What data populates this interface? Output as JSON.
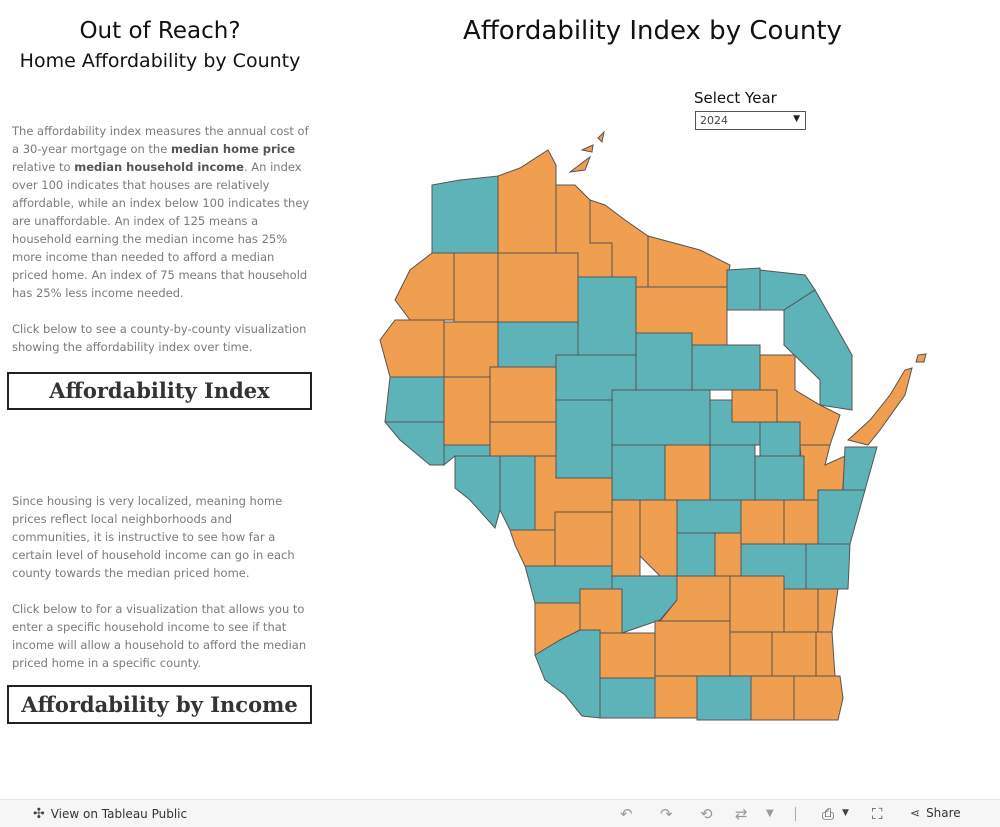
{
  "sidebar": {
    "title_line1": "Out of Reach?",
    "title_line2": "Home Affordability by County",
    "intro": {
      "p1_a": "The affordability index measures the annual cost of a 30-year mortgage on the ",
      "p1_b": "median home price",
      "p1_c": " relative to ",
      "p1_d": "median household income",
      "p1_e": ". An index over 100 indicates that houses are relatively affordable, while an index below 100 indicates they are unaffordable. An index of 125 means a household earning the median income has 25% more income than needed to afford a median priced home. An index of 75 means that household has 25% less income needed.",
      "p2": "Click below to see a county-by-county visualization showing the affordability index over time."
    },
    "button1_label": "Affordability Index",
    "second": {
      "p1": "Since housing is very localized, meaning home prices reflect local neighborhoods and communities, it is instructive to see how far a certain level of household income can go in each county towards the median priced home.",
      "p2": "Click below to for a visualization that allows you to enter a specific household income to see if that income will allow a household to afford the median priced home in a specific county."
    },
    "button2_label": "Affordability by Income"
  },
  "main": {
    "title": "Affordability Index by County",
    "year_label": "Select Year",
    "year_value": "2024"
  },
  "colors": {
    "affordable": "#5eb3b8",
    "unaffordable": "#f09e50"
  },
  "footer": {
    "view_label": "View on Tableau Public",
    "share_label": "Share"
  }
}
